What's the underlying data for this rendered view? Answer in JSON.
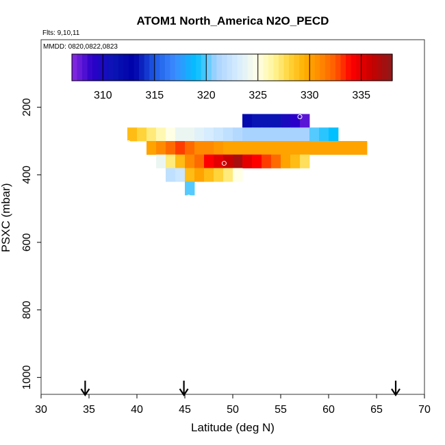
{
  "chart_data": {
    "type": "heatmap",
    "title": "ATOM1 North_America N2O_PECD",
    "flights_label": "Flts: 9,10,11",
    "dates_label": "MMDD: 0820,0822,0823",
    "xlabel": "Latitude (deg N)",
    "ylabel": "PSXC (mbar)",
    "xlim": [
      30,
      70
    ],
    "ylim": [
      1050,
      0
    ],
    "xticks": [
      "30",
      "35",
      "40",
      "45",
      "50",
      "55",
      "60",
      "65",
      "70"
    ],
    "yticks": [
      "200",
      "400",
      "600",
      "800",
      "1000"
    ],
    "colorbar": {
      "range": [
        307,
        338
      ],
      "ticks": [
        "310",
        "315",
        "320",
        "325",
        "330",
        "335"
      ]
    },
    "cell_size": {
      "lat": 1,
      "pressure": 40
    },
    "cells": [
      {
        "lat": 51,
        "p": 220,
        "v": 312
      },
      {
        "lat": 52,
        "p": 220,
        "v": 311
      },
      {
        "lat": 53,
        "p": 220,
        "v": 311
      },
      {
        "lat": 54,
        "p": 220,
        "v": 311
      },
      {
        "lat": 55,
        "p": 220,
        "v": 310
      },
      {
        "lat": 56,
        "p": 220,
        "v": 309
      },
      {
        "lat": 57,
        "p": 220,
        "v": 308
      },
      {
        "lat": 39,
        "p": 260,
        "v": 329
      },
      {
        "lat": 40,
        "p": 260,
        "v": 328
      },
      {
        "lat": 41,
        "p": 260,
        "v": 327
      },
      {
        "lat": 42,
        "p": 260,
        "v": 326
      },
      {
        "lat": 43,
        "p": 260,
        "v": 325
      },
      {
        "lat": 44,
        "p": 260,
        "v": 324
      },
      {
        "lat": 45,
        "p": 260,
        "v": 324
      },
      {
        "lat": 46,
        "p": 260,
        "v": 323.5
      },
      {
        "lat": 47,
        "p": 260,
        "v": 323
      },
      {
        "lat": 48,
        "p": 260,
        "v": 322.5
      },
      {
        "lat": 49,
        "p": 260,
        "v": 322
      },
      {
        "lat": 50,
        "p": 260,
        "v": 321.5
      },
      {
        "lat": 51,
        "p": 260,
        "v": 321
      },
      {
        "lat": 52,
        "p": 260,
        "v": 321
      },
      {
        "lat": 53,
        "p": 260,
        "v": 321
      },
      {
        "lat": 54,
        "p": 260,
        "v": 321
      },
      {
        "lat": 55,
        "p": 260,
        "v": 321
      },
      {
        "lat": 56,
        "p": 260,
        "v": 321
      },
      {
        "lat": 57,
        "p": 260,
        "v": 321
      },
      {
        "lat": 58,
        "p": 260,
        "v": 320
      },
      {
        "lat": 59,
        "p": 260,
        "v": 319.5
      },
      {
        "lat": 60,
        "p": 260,
        "v": 319
      },
      {
        "lat": 41,
        "p": 300,
        "v": 330
      },
      {
        "lat": 42,
        "p": 300,
        "v": 331
      },
      {
        "lat": 43,
        "p": 300,
        "v": 332
      },
      {
        "lat": 44,
        "p": 300,
        "v": 333
      },
      {
        "lat": 45,
        "p": 300,
        "v": 332
      },
      {
        "lat": 46,
        "p": 300,
        "v": 331
      },
      {
        "lat": 47,
        "p": 300,
        "v": 331
      },
      {
        "lat": 48,
        "p": 300,
        "v": 330.5
      },
      {
        "lat": 49,
        "p": 300,
        "v": 330
      },
      {
        "lat": 50,
        "p": 300,
        "v": 330
      },
      {
        "lat": 51,
        "p": 300,
        "v": 330
      },
      {
        "lat": 52,
        "p": 300,
        "v": 330
      },
      {
        "lat": 53,
        "p": 300,
        "v": 330
      },
      {
        "lat": 54,
        "p": 300,
        "v": 330
      },
      {
        "lat": 55,
        "p": 300,
        "v": 330
      },
      {
        "lat": 56,
        "p": 300,
        "v": 330
      },
      {
        "lat": 57,
        "p": 300,
        "v": 330
      },
      {
        "lat": 58,
        "p": 300,
        "v": 330
      },
      {
        "lat": 59,
        "p": 300,
        "v": 330
      },
      {
        "lat": 60,
        "p": 300,
        "v": 330
      },
      {
        "lat": 61,
        "p": 300,
        "v": 330
      },
      {
        "lat": 62,
        "p": 300,
        "v": 330
      },
      {
        "lat": 63,
        "p": 300,
        "v": 330
      },
      {
        "lat": 42,
        "p": 340,
        "v": 324
      },
      {
        "lat": 43,
        "p": 340,
        "v": 327
      },
      {
        "lat": 44,
        "p": 340,
        "v": 329
      },
      {
        "lat": 45,
        "p": 340,
        "v": 331
      },
      {
        "lat": 46,
        "p": 340,
        "v": 332
      },
      {
        "lat": 47,
        "p": 340,
        "v": 334
      },
      {
        "lat": 48,
        "p": 340,
        "v": 335
      },
      {
        "lat": 49,
        "p": 340,
        "v": 336
      },
      {
        "lat": 50,
        "p": 340,
        "v": 337
      },
      {
        "lat": 51,
        "p": 340,
        "v": 335
      },
      {
        "lat": 52,
        "p": 340,
        "v": 334
      },
      {
        "lat": 53,
        "p": 340,
        "v": 333
      },
      {
        "lat": 54,
        "p": 340,
        "v": 332
      },
      {
        "lat": 55,
        "p": 340,
        "v": 330
      },
      {
        "lat": 56,
        "p": 340,
        "v": 329
      },
      {
        "lat": 57,
        "p": 340,
        "v": 327.5
      },
      {
        "lat": 43,
        "p": 380,
        "v": 322
      },
      {
        "lat": 44,
        "p": 380,
        "v": 322.5
      },
      {
        "lat": 45,
        "p": 380,
        "v": 329
      },
      {
        "lat": 46,
        "p": 380,
        "v": 330
      },
      {
        "lat": 47,
        "p": 380,
        "v": 329
      },
      {
        "lat": 48,
        "p": 380,
        "v": 328
      },
      {
        "lat": 49,
        "p": 380,
        "v": 327
      },
      {
        "lat": 50,
        "p": 380,
        "v": 325
      },
      {
        "lat": 45,
        "p": 420,
        "v": 320
      }
    ]
  }
}
